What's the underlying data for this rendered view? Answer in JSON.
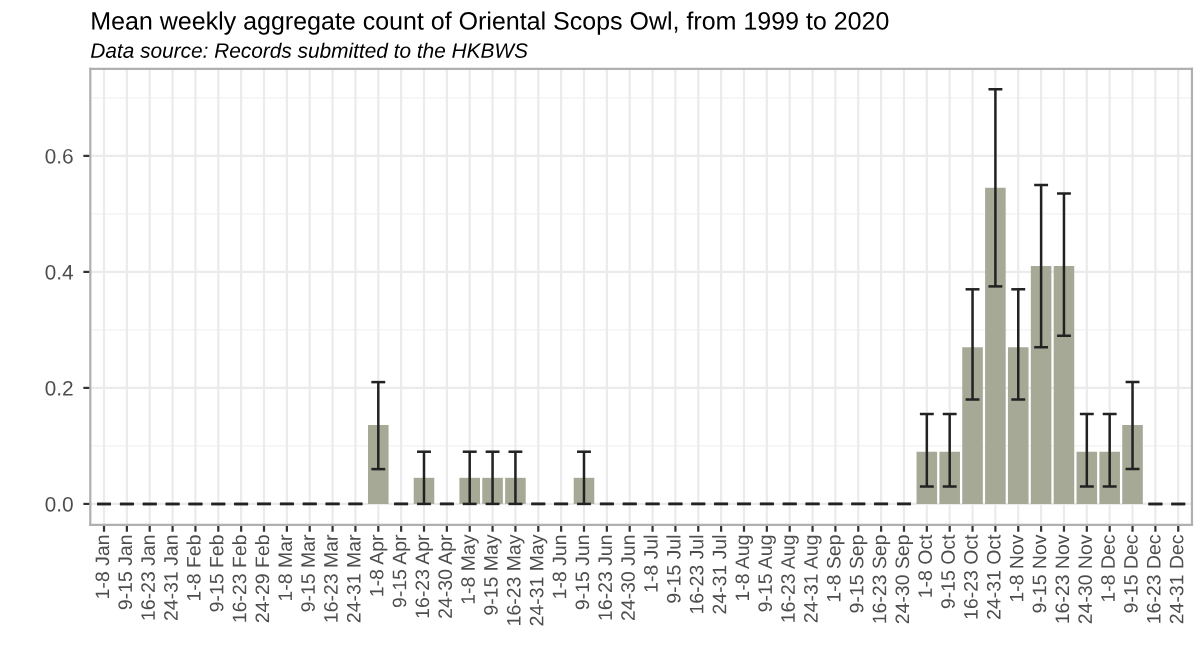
{
  "chart_data": {
    "type": "bar",
    "title": "Mean weekly aggregate count of Oriental Scops Owl, from 1999 to 2020",
    "subtitle": "Data source: Records submitted to the HKBWS",
    "categories": [
      "1-8 Jan",
      "9-15 Jan",
      "16-23 Jan",
      "24-31 Jan",
      "1-8 Feb",
      "9-15 Feb",
      "16-23 Feb",
      "24-29 Feb",
      "1-8 Mar",
      "9-15 Mar",
      "16-23 Mar",
      "24-31 Mar",
      "1-8 Apr",
      "9-15 Apr",
      "16-23 Apr",
      "24-30 Apr",
      "1-8 May",
      "9-15 May",
      "16-23 May",
      "24-31 May",
      "1-8 Jun",
      "9-15 Jun",
      "16-23 Jun",
      "24-30 Jun",
      "1-8 Jul",
      "9-15 Jul",
      "16-23 Jul",
      "24-31 Jul",
      "1-8 Aug",
      "9-15 Aug",
      "16-23 Aug",
      "24-31 Aug",
      "1-8 Sep",
      "9-15 Sep",
      "16-23 Sep",
      "24-30 Sep",
      "1-8 Oct",
      "9-15 Oct",
      "16-23 Oct",
      "24-31 Oct",
      "1-8 Nov",
      "9-15 Nov",
      "16-23 Nov",
      "24-30 Nov",
      "1-8 Dec",
      "9-15 Dec",
      "16-23 Dec",
      "24-31 Dec"
    ],
    "values": [
      0,
      0,
      0,
      0,
      0,
      0,
      0,
      0,
      0,
      0,
      0,
      0,
      0.136,
      0,
      0.045,
      0,
      0.045,
      0.045,
      0.045,
      0,
      0,
      0.045,
      0,
      0,
      0,
      0,
      0,
      0,
      0,
      0,
      0,
      0,
      0,
      0,
      0,
      0,
      0.09,
      0.09,
      0.27,
      0.545,
      0.27,
      0.41,
      0.41,
      0.09,
      0.09,
      0.136,
      0,
      0
    ],
    "errors": [
      [
        0,
        0
      ],
      [
        0,
        0
      ],
      [
        0,
        0
      ],
      [
        0,
        0
      ],
      [
        0,
        0
      ],
      [
        0,
        0
      ],
      [
        0,
        0
      ],
      [
        0,
        0
      ],
      [
        0,
        0
      ],
      [
        0,
        0
      ],
      [
        0,
        0
      ],
      [
        0,
        0
      ],
      [
        0.06,
        0.21
      ],
      [
        0,
        0
      ],
      [
        0,
        0.09
      ],
      [
        0,
        0
      ],
      [
        0,
        0.09
      ],
      [
        0,
        0.09
      ],
      [
        0,
        0.09
      ],
      [
        0,
        0
      ],
      [
        0,
        0
      ],
      [
        0,
        0.09
      ],
      [
        0,
        0
      ],
      [
        0,
        0
      ],
      [
        0,
        0
      ],
      [
        0,
        0
      ],
      [
        0,
        0
      ],
      [
        0,
        0
      ],
      [
        0,
        0
      ],
      [
        0,
        0
      ],
      [
        0,
        0
      ],
      [
        0,
        0
      ],
      [
        0,
        0
      ],
      [
        0,
        0
      ],
      [
        0,
        0
      ],
      [
        0,
        0
      ],
      [
        0.03,
        0.155
      ],
      [
        0.03,
        0.155
      ],
      [
        0.18,
        0.37
      ],
      [
        0.375,
        0.715
      ],
      [
        0.18,
        0.37
      ],
      [
        0.27,
        0.55
      ],
      [
        0.29,
        0.535
      ],
      [
        0.03,
        0.155
      ],
      [
        0.03,
        0.155
      ],
      [
        0.06,
        0.21
      ],
      [
        0,
        0
      ],
      [
        0,
        0
      ]
    ],
    "color": "#a6a996",
    "ylim": [
      -0.036,
      0.75
    ],
    "yticks": [
      {
        "value": 0,
        "label": "0.0"
      },
      {
        "value": 0.2,
        "label": "0.2"
      },
      {
        "value": 0.4,
        "label": "0.4"
      },
      {
        "value": 0.6,
        "label": "0.6"
      }
    ],
    "grid": true
  }
}
